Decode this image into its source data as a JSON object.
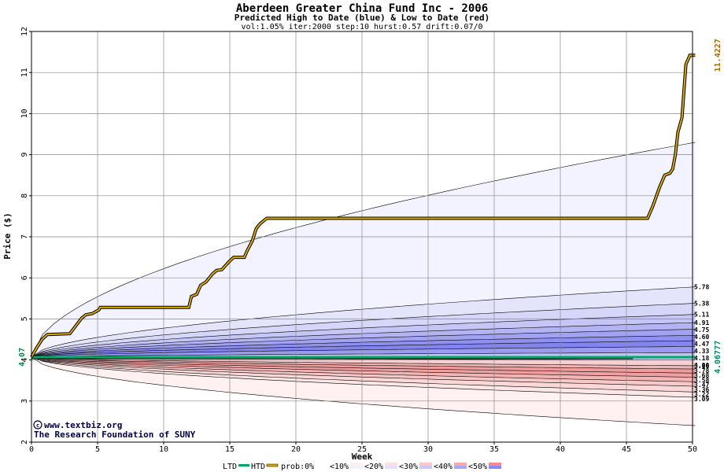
{
  "chart_data": {
    "type": "line",
    "title": "Aberdeen Greater China Fund Inc - 2006",
    "subtitle": "Predicted High to Date (blue) &  Low to Date (red)",
    "params": "vol:1.05% iter:2000 step:10 hurst:0.57 drift:0.07/0",
    "xlabel": "Week",
    "ylabel": "Price ($)",
    "xlim": [
      0,
      50
    ],
    "ylim": [
      2,
      12
    ],
    "x_ticks": [
      0,
      5,
      10,
      15,
      20,
      25,
      30,
      35,
      40,
      45,
      50
    ],
    "y_ticks": [
      2,
      3,
      4,
      5,
      6,
      7,
      8,
      9,
      10,
      11,
      12
    ],
    "grid": true,
    "start_price": 4.07,
    "start_label": "4.07",
    "end_high_label": "11.4227",
    "end_low_label": "4.06777",
    "high_band_ends": [
      9.3,
      5.78,
      5.38,
      5.11,
      4.91,
      4.75,
      4.6,
      4.47,
      4.33,
      4.18
    ],
    "low_band_ends": [
      4.0,
      3.86,
      3.78,
      3.68,
      3.58,
      3.47,
      3.36,
      3.22,
      3.09,
      2.4
    ],
    "right_labels": [
      "5.78",
      "5.38",
      "5.11",
      "4.91",
      "4.75",
      "4.60",
      "4.47",
      "4.33",
      "4.18",
      "4.00",
      "3.86",
      "3.78",
      "3.68",
      "3.58",
      "3.47",
      "3.36",
      "3.22",
      "3.09"
    ],
    "htd_series": {
      "name": "HTD",
      "x": [
        0,
        0.4,
        0.8,
        1.2,
        2.9,
        3.4,
        3.8,
        4.1,
        4.6,
        5.1,
        5.2,
        11.9,
        12.1,
        12.5,
        12.8,
        13.2,
        13.7,
        14.0,
        14.4,
        14.9,
        15.3,
        16.1,
        16.3,
        16.7,
        17.0,
        17.3,
        17.8,
        46.6,
        47.0,
        47.5,
        47.9,
        48.3,
        48.5,
        48.7,
        48.9,
        49.2,
        49.5,
        49.8,
        50.2
      ],
      "y": [
        4.07,
        4.3,
        4.5,
        4.62,
        4.64,
        4.85,
        5.02,
        5.1,
        5.13,
        5.22,
        5.28,
        5.28,
        5.55,
        5.6,
        5.82,
        5.9,
        6.1,
        6.18,
        6.2,
        6.38,
        6.5,
        6.5,
        6.65,
        6.9,
        7.2,
        7.32,
        7.45,
        7.45,
        7.75,
        8.2,
        8.5,
        8.55,
        8.65,
        9.0,
        9.55,
        9.9,
        11.2,
        11.42,
        11.42
      ]
    },
    "ltd_series": {
      "name": "LTD",
      "x": [
        0,
        50.2
      ],
      "y": [
        4.07,
        4.07
      ]
    },
    "legend": {
      "placement": "bottom",
      "items": [
        "LTD",
        "HTD",
        "prob:0%",
        "<10%",
        "<20%",
        "<30%",
        "<40%",
        "<50%"
      ]
    },
    "colors": {
      "htd": "#ddaa00",
      "ltd": "#00aa66",
      "high_bands": [
        "#f3f3ff",
        "#e4e4fa",
        "#d6d6f8",
        "#c6c6f6",
        "#b4b4f4",
        "#a2a2f2",
        "#9090f0",
        "#8484ee",
        "#9a9af0",
        "#c4c4f4"
      ],
      "low_bands": [
        "#f6d0d0",
        "#f2b4b4",
        "#f09c9c",
        "#f0a0a0",
        "#f4b4b4",
        "#f8c8c8",
        "#fad8d8",
        "#fde6e6",
        "#fff1f1"
      ],
      "grid": "#888888"
    }
  },
  "credits": {
    "line1": "www.textbiz.org",
    "line2": "The Research Foundation of SUNY"
  }
}
